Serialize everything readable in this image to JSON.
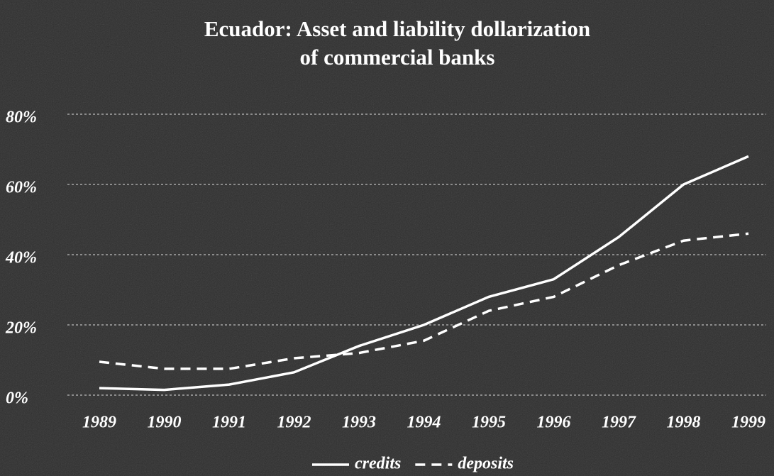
{
  "chart_data": {
    "type": "line",
    "title": [
      "Ecuador: Asset and liability dollarization",
      "of commercial banks"
    ],
    "categories": [
      "1989",
      "1990",
      "1991",
      "1992",
      "1993",
      "1994",
      "1995",
      "1996",
      "1997",
      "1998",
      "1999"
    ],
    "series": [
      {
        "name": "credits",
        "color": "#ffffff",
        "dashed": false,
        "values": [
          2,
          1.5,
          3,
          6.5,
          14,
          20,
          28,
          33,
          45,
          60,
          68
        ]
      },
      {
        "name": "deposits",
        "color": "#ffffff",
        "dashed": true,
        "values": [
          9.5,
          7.5,
          7.5,
          10.5,
          12,
          15.5,
          24,
          28,
          37,
          44,
          46
        ]
      }
    ],
    "ylim": [
      0,
      80
    ],
    "yticks": [
      {
        "value": 0,
        "label": "0%"
      },
      {
        "value": 20,
        "label": "20%"
      },
      {
        "value": 40,
        "label": "40%"
      },
      {
        "value": 60,
        "label": "60%"
      },
      {
        "value": 80,
        "label": "80%"
      }
    ],
    "grid": true,
    "legend": "bottom"
  }
}
